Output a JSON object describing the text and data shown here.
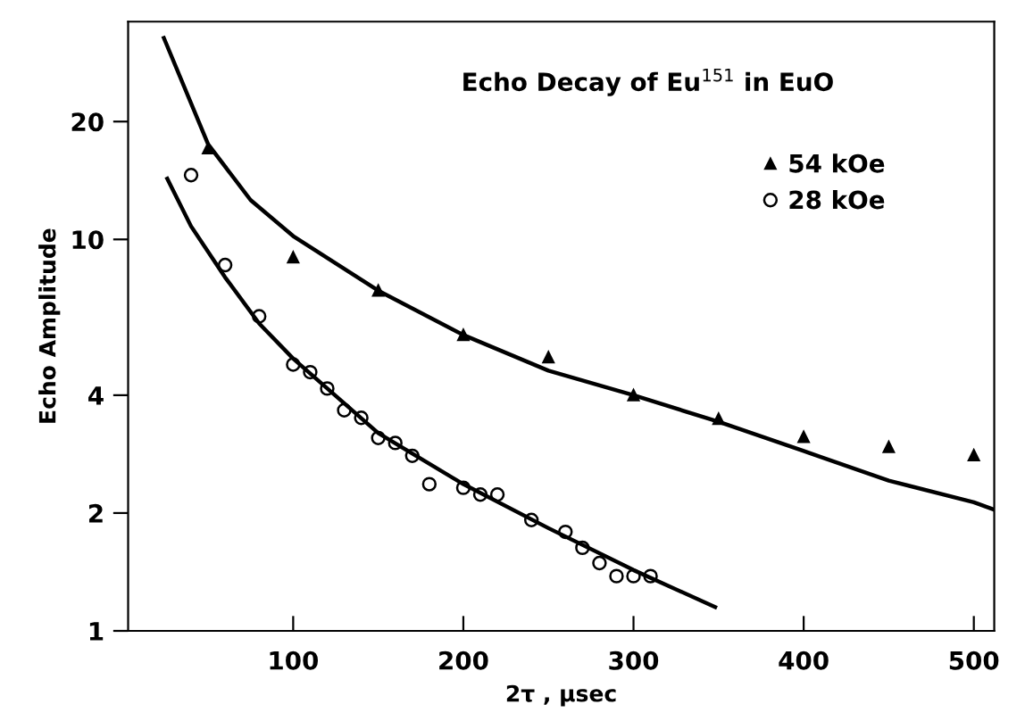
{
  "chart_data": {
    "type": "scatter",
    "title": "Echo Decay of Eu$^{151}$ in EuO",
    "xlabel": "2τ , μsec",
    "ylabel": "Echo Amplitude",
    "log": "y",
    "xlim": [
      3,
      512
    ],
    "ylim": [
      1,
      36
    ],
    "xticks": [
      100,
      200,
      300,
      400,
      500
    ],
    "yticks": [
      1,
      2,
      4,
      10,
      20
    ],
    "grid": false,
    "legend": "top right",
    "series": [
      {
        "name": "54 kOe",
        "color": "#000000",
        "marker": "triangle",
        "x": [
          50,
          100,
          150,
          200,
          250,
          300,
          350,
          400,
          450,
          500
        ],
        "values": [
          17.1,
          9.0,
          7.4,
          5.7,
          5.0,
          4.0,
          3.48,
          3.13,
          2.95,
          2.81
        ]
      },
      {
        "name": "28 kOe",
        "color": "#000000",
        "marker": "circle",
        "x": [
          40,
          60,
          80,
          100,
          110,
          120,
          130,
          140,
          150,
          160,
          170,
          180,
          200,
          210,
          220,
          240,
          260,
          270,
          280,
          290,
          300,
          310
        ],
        "values": [
          14.6,
          8.6,
          6.36,
          4.79,
          4.58,
          4.16,
          3.66,
          3.5,
          3.11,
          3.02,
          2.8,
          2.37,
          2.32,
          2.23,
          2.23,
          1.92,
          1.79,
          1.63,
          1.49,
          1.38,
          1.38,
          1.38
        ]
      },
      {
        "type": "line",
        "color": "#000000",
        "marker": "none",
        "x": [
          24,
          50,
          75,
          100,
          150,
          200,
          250,
          300,
          350,
          400,
          450,
          500,
          512
        ],
        "values": [
          32.7,
          17.5,
          12.6,
          10.2,
          7.4,
          5.7,
          4.62,
          4.0,
          3.42,
          2.88,
          2.42,
          2.13,
          2.04
        ]
      },
      {
        "type": "line",
        "color": "#000000",
        "marker": "none",
        "x": [
          26,
          40,
          60,
          80,
          100,
          150,
          200,
          250,
          300,
          348
        ],
        "values": [
          14.3,
          10.8,
          8.0,
          6.1,
          4.96,
          3.2,
          2.37,
          1.83,
          1.43,
          1.15
        ]
      }
    ]
  }
}
